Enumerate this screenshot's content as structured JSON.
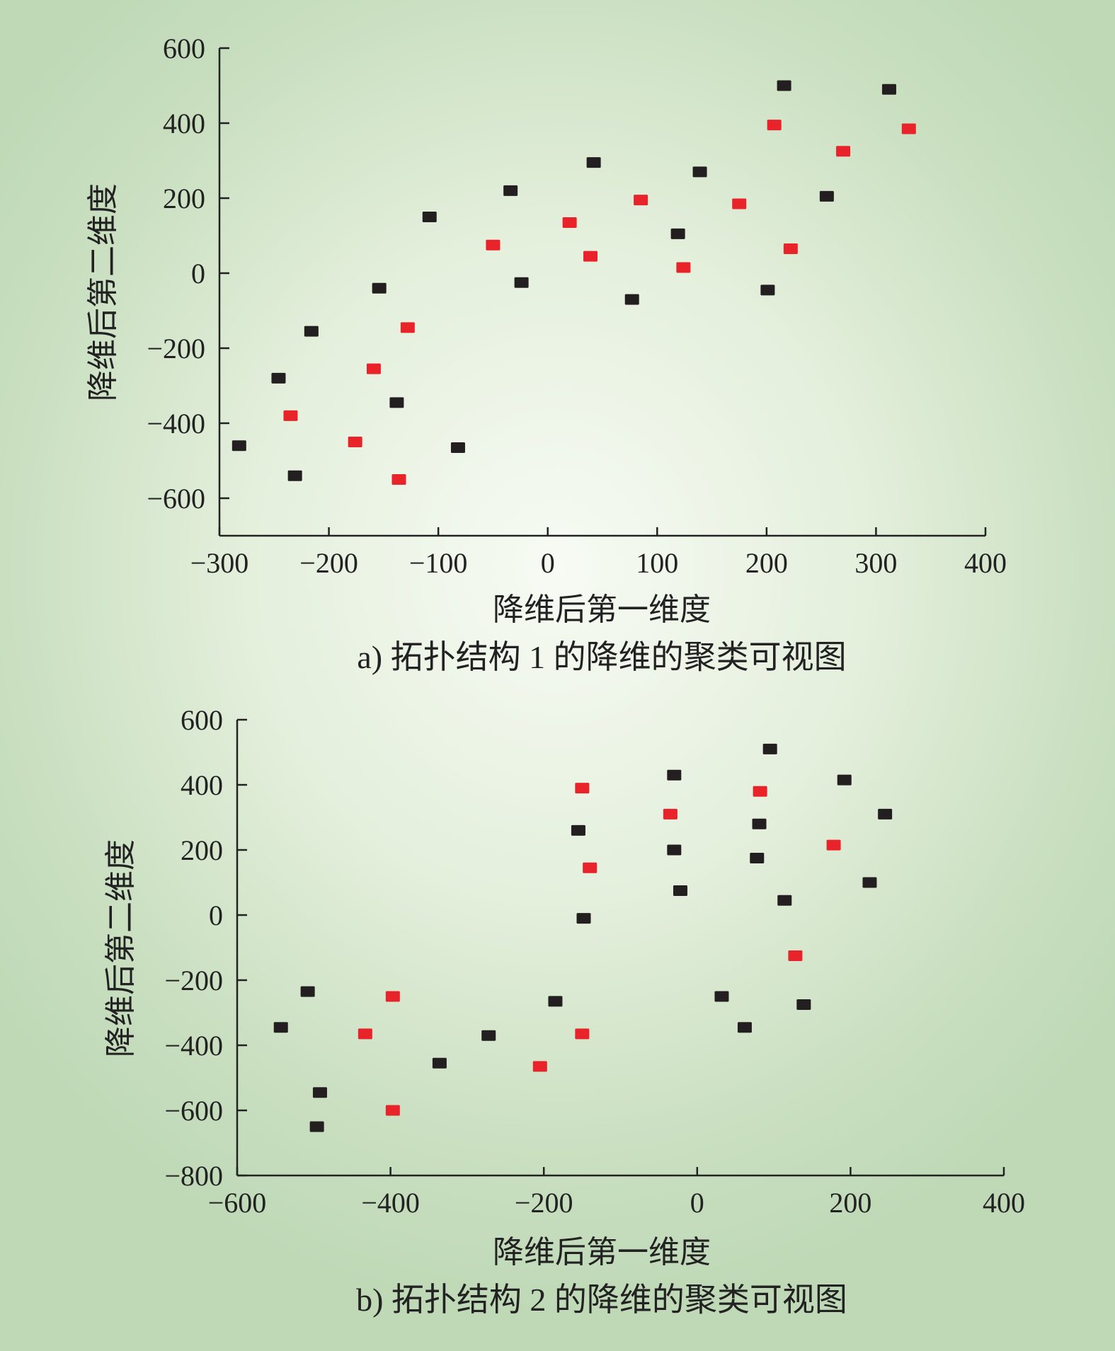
{
  "colors": {
    "cluster_a": "#e8242a",
    "cluster_b": "#231f20",
    "axis": "#222222"
  },
  "chart_data": [
    {
      "type": "scatter",
      "caption": "a) 拓扑结构 1 的降维的聚类可视图",
      "xlabel": "降维后第一维度",
      "ylabel": "降维后第二维度",
      "xlim": [
        -300,
        400
      ],
      "ylim": [
        -700,
        600
      ],
      "xticks": [
        -300,
        -200,
        -100,
        0,
        100,
        200,
        300,
        400
      ],
      "xtick_labels": [
        "−300",
        "−200",
        "−100",
        "0",
        "100",
        "200",
        "300",
        "400"
      ],
      "yticks": [
        -600,
        -400,
        -200,
        0,
        200,
        400,
        600
      ],
      "ytick_labels": [
        "−600",
        "−400",
        "−200",
        "0",
        "200",
        "400",
        "600"
      ],
      "series": [
        {
          "color": "#e8242a",
          "points": [
            [
              -235,
              -380
            ],
            [
              -176,
              -450
            ],
            [
              -159,
              -255
            ],
            [
              -136,
              -550
            ],
            [
              -128,
              -145
            ],
            [
              -50,
              75
            ],
            [
              20,
              135
            ],
            [
              39,
              45
            ],
            [
              85,
              195
            ],
            [
              124,
              15
            ],
            [
              175,
              185
            ],
            [
              207,
              395
            ],
            [
              222,
              65
            ],
            [
              270,
              325
            ],
            [
              330,
              385
            ]
          ]
        },
        {
          "color": "#231f20",
          "points": [
            [
              -282,
              -460
            ],
            [
              -246,
              -280
            ],
            [
              -231,
              -540
            ],
            [
              -216,
              -155
            ],
            [
              -154,
              -40
            ],
            [
              -138,
              -345
            ],
            [
              -108,
              150
            ],
            [
              -82,
              -465
            ],
            [
              -34,
              220
            ],
            [
              -24,
              -25
            ],
            [
              42,
              295
            ],
            [
              77,
              -70
            ],
            [
              119,
              105
            ],
            [
              139,
              270
            ],
            [
              201,
              -45
            ],
            [
              216,
              500
            ],
            [
              255,
              205
            ],
            [
              312,
              490
            ]
          ]
        }
      ]
    },
    {
      "type": "scatter",
      "caption": "b) 拓扑结构 2 的降维的聚类可视图",
      "xlabel": "降维后第一维度",
      "ylabel": "降维后第二维度",
      "xlim": [
        -600,
        400
      ],
      "ylim": [
        -800,
        600
      ],
      "xticks": [
        -600,
        -400,
        -200,
        0,
        200,
        400
      ],
      "xtick_labels": [
        "−600",
        "−400",
        "−200",
        "0",
        "200",
        "400"
      ],
      "yticks": [
        -800,
        -600,
        -400,
        -200,
        0,
        200,
        400,
        600
      ],
      "ytick_labels": [
        "−800",
        "−600",
        "−400",
        "−200",
        "0",
        "200",
        "400",
        "600"
      ],
      "series": [
        {
          "color": "#e8242a",
          "points": [
            [
              -433,
              -365
            ],
            [
              -397,
              -250
            ],
            [
              -397,
              -600
            ],
            [
              -205,
              -465
            ],
            [
              -150,
              -365
            ],
            [
              -150,
              390
            ],
            [
              -140,
              145
            ],
            [
              -35,
              310
            ],
            [
              82,
              380
            ],
            [
              128,
              -125
            ],
            [
              178,
              215
            ]
          ]
        },
        {
          "color": "#231f20",
          "points": [
            [
              -543,
              -345
            ],
            [
              -508,
              -235
            ],
            [
              -492,
              -545
            ],
            [
              -496,
              -650
            ],
            [
              -336,
              -455
            ],
            [
              -272,
              -370
            ],
            [
              -185,
              -265
            ],
            [
              -155,
              260
            ],
            [
              -148,
              -10
            ],
            [
              -30,
              430
            ],
            [
              -30,
              200
            ],
            [
              -22,
              75
            ],
            [
              32,
              -250
            ],
            [
              62,
              -345
            ],
            [
              78,
              175
            ],
            [
              81,
              280
            ],
            [
              95,
              510
            ],
            [
              114,
              45
            ],
            [
              139,
              -275
            ],
            [
              192,
              415
            ],
            [
              225,
              100
            ],
            [
              245,
              310
            ]
          ]
        }
      ]
    }
  ]
}
